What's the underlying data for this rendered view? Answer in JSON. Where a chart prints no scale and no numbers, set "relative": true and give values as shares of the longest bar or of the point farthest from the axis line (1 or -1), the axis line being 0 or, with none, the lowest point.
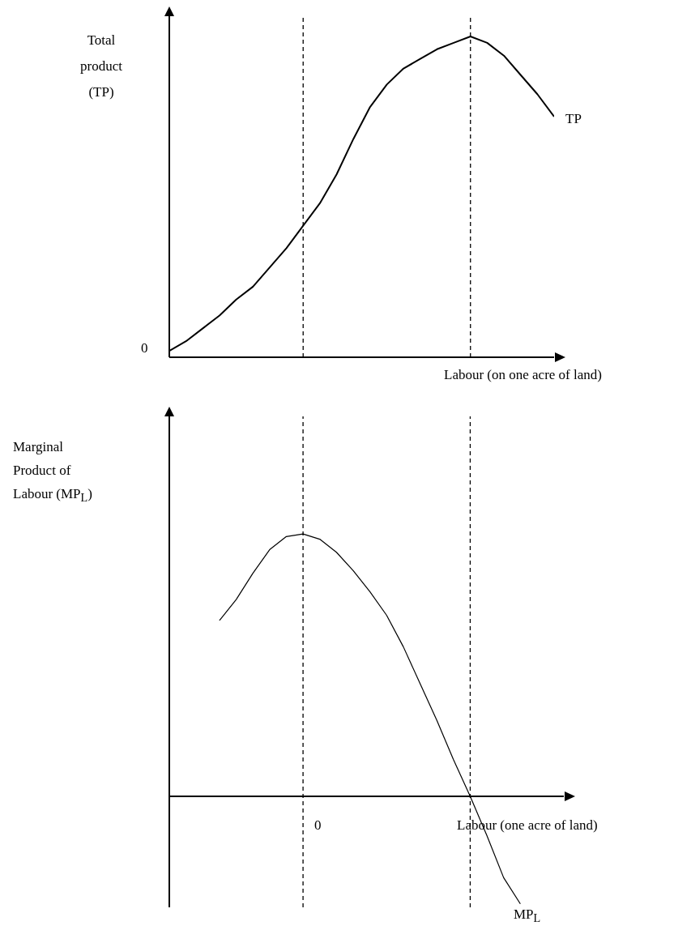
{
  "chart_data": [
    {
      "type": "line",
      "relative": true,
      "ylabel": "Total product (TP)",
      "xlabel": "Labour (on one acre of land)",
      "marker": "none",
      "categories": [
        null,
        null,
        null,
        null,
        null,
        null,
        null,
        null,
        null,
        null,
        null,
        null,
        null,
        null,
        null,
        null,
        null,
        null,
        null,
        null,
        null,
        null,
        null,
        null
      ],
      "series": [
        {
          "name": "TP",
          "color": "#000000",
          "values": [
            0.02,
            0.05,
            0.09,
            0.13,
            0.18,
            0.22,
            0.28,
            0.34,
            0.41,
            0.48,
            0.57,
            0.68,
            0.78,
            0.85,
            0.9,
            0.93,
            0.96,
            0.98,
            1,
            0.98,
            0.94,
            0.88,
            0.82,
            0.75
          ]
        }
      ],
      "annotations": [
        "0"
      ]
    },
    {
      "type": "line",
      "relative": true,
      "ylabel": "Marginal Product of Labour (MP$_{L}$)",
      "xlabel": "Labour (one acre of land)",
      "marker": "none",
      "categories": [
        null,
        null,
        null,
        null,
        null,
        null,
        null,
        null,
        null,
        null,
        null,
        null,
        null,
        null,
        null,
        null,
        null,
        null,
        null
      ],
      "series": [
        {
          "name": "MP$_{L}$",
          "color": "#000000",
          "values": [
            0.67,
            0.75,
            0.85,
            0.94,
            0.99,
            1,
            0.98,
            0.93,
            0.86,
            0.78,
            0.69,
            0.57,
            0.43,
            0.29,
            0.14,
            0,
            -0.15,
            -0.31,
            -0.41
          ]
        }
      ],
      "annotations": [
        "0"
      ]
    }
  ]
}
